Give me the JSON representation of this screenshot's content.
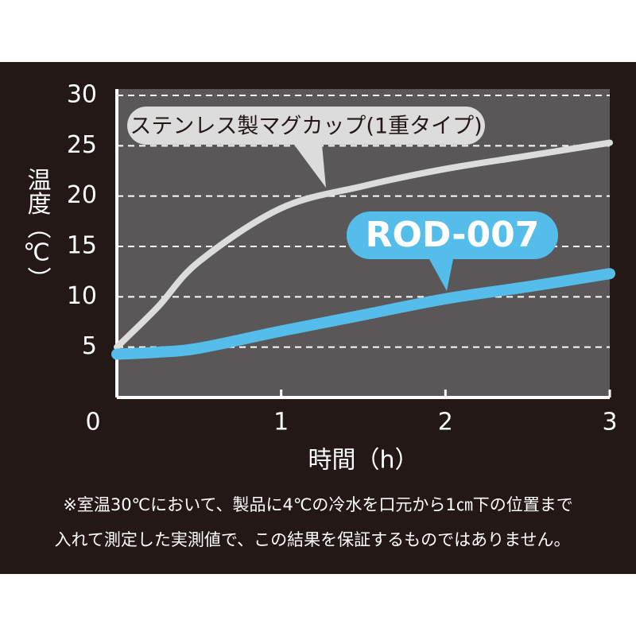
{
  "chart_data": {
    "type": "line",
    "x": [
      0,
      0.25,
      0.5,
      1,
      1.5,
      2,
      2.5,
      3
    ],
    "series": [
      {
        "name": "ステンレス製マグカップ(1重タイプ)",
        "color": "#dcdcdc",
        "values": [
          5,
          9,
          13.5,
          18.8,
          21,
          22.7,
          24,
          25.3
        ]
      },
      {
        "name": "ROD-007",
        "color": "#55bde9",
        "values": [
          4.3,
          4.5,
          4.9,
          6.6,
          8.2,
          9.8,
          11,
          12.3
        ]
      }
    ],
    "xlim": [
      0,
      3
    ],
    "xticks": [
      0,
      1,
      2,
      3
    ],
    "ylim": [
      0,
      30
    ],
    "yticks": [
      5,
      10,
      15,
      20,
      25,
      30
    ],
    "grid": true,
    "x_label": "時間（h）",
    "y_label": "温度（℃）",
    "notes": [
      "※室温30℃において、製品に4℃の冷水を口元から1㎝下の位置まで",
      "入れて測定した実測値で、この結果を保証するものではありません。"
    ]
  }
}
